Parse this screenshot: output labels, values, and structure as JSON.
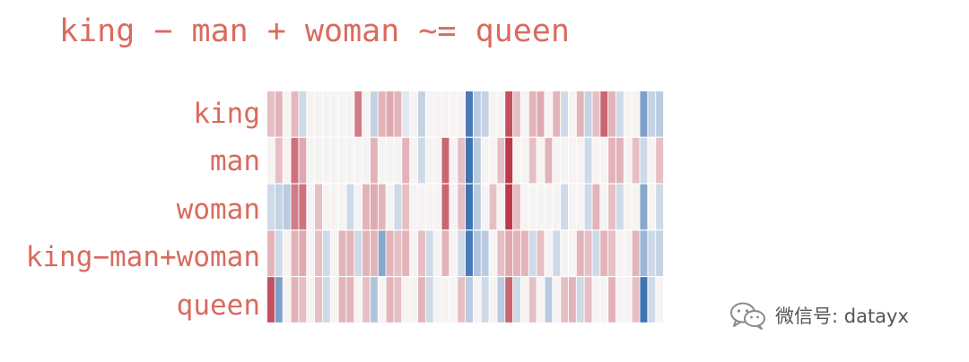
{
  "title": "king − man + woman ~= queen",
  "watermark": {
    "text": "微信号: datayx",
    "icon": "wechat-icon"
  },
  "chart_data": {
    "type": "heatmap",
    "title": "king − man + woman ~= queen",
    "rows": [
      "king",
      "man",
      "woman",
      "king−man+woman",
      "queen"
    ],
    "n_columns": 50,
    "value_range": [
      -1,
      1
    ],
    "colormap": {
      "negative": "#2b65a9",
      "zero": "#f7f7f7",
      "positive": "#b2182b"
    },
    "values": [
      [
        0.25,
        0.3,
        0.02,
        0.28,
        -0.2,
        0.02,
        0.02,
        0.02,
        0.02,
        0.02,
        0.02,
        0.55,
        0.02,
        -0.25,
        0.3,
        0.35,
        0.3,
        -0.1,
        0.02,
        -0.25,
        0.02,
        0.02,
        0.02,
        0.02,
        0.02,
        -0.85,
        -0.3,
        -0.25,
        0.02,
        0.02,
        0.75,
        0.25,
        0.02,
        0.3,
        0.35,
        0.02,
        0.3,
        -0.2,
        0.02,
        0.3,
        -0.25,
        0.25,
        0.65,
        0.3,
        -0.2,
        0.02,
        0.02,
        -0.6,
        -0.25,
        -0.3
      ],
      [
        0.02,
        0.25,
        0.02,
        0.6,
        0.35,
        0.02,
        0.02,
        0.02,
        0.02,
        0.02,
        0.02,
        0.02,
        0.02,
        0.3,
        0.02,
        0.02,
        0.02,
        0.3,
        0.02,
        -0.2,
        0.02,
        0.02,
        0.65,
        0.02,
        0.25,
        -0.9,
        -0.3,
        0.02,
        0.02,
        0.25,
        0.85,
        0.02,
        0.02,
        0.25,
        0.02,
        0.3,
        0.02,
        0.02,
        0.02,
        0.02,
        -0.2,
        0.02,
        0.02,
        0.3,
        0.3,
        0.02,
        0.25,
        -0.2,
        0.02,
        0.25
      ],
      [
        -0.2,
        -0.25,
        -0.3,
        0.55,
        0.6,
        0.02,
        0.25,
        0.02,
        0.02,
        0.02,
        -0.2,
        0.02,
        0.3,
        0.35,
        0.3,
        0.02,
        -0.2,
        0.25,
        0.02,
        0.02,
        0.02,
        0.02,
        0.65,
        0.02,
        0.25,
        -0.9,
        -0.3,
        0.02,
        0.25,
        0.02,
        0.85,
        0.25,
        0.02,
        0.02,
        0.02,
        0.02,
        0.02,
        -0.2,
        0.02,
        0.02,
        -0.2,
        0.3,
        0.02,
        0.25,
        -0.2,
        0.02,
        0.02,
        -0.55,
        0.02,
        -0.2
      ],
      [
        0.3,
        -0.2,
        0.02,
        0.3,
        0.35,
        0.02,
        0.25,
        -0.2,
        0.02,
        0.3,
        0.3,
        -0.2,
        0.3,
        0.3,
        -0.55,
        0.3,
        0.25,
        0.3,
        0.02,
        0.25,
        -0.2,
        0.02,
        0.3,
        0.02,
        -0.2,
        -0.85,
        -0.35,
        -0.3,
        0.02,
        0.25,
        0.35,
        0.3,
        0.3,
        -0.2,
        0.25,
        0.02,
        -0.2,
        0.02,
        0.02,
        0.3,
        0.25,
        -0.2,
        0.3,
        0.25,
        0.02,
        0.02,
        0.3,
        -0.45,
        -0.2,
        -0.25
      ],
      [
        0.75,
        -0.6,
        0.02,
        0.3,
        0.25,
        0.02,
        0.25,
        -0.2,
        0.02,
        0.3,
        0.3,
        0.02,
        0.25,
        -0.35,
        0.02,
        0.3,
        0.25,
        0.02,
        0.02,
        0.3,
        -0.2,
        0.02,
        0.02,
        0.02,
        0.25,
        -0.3,
        0.02,
        -0.2,
        0.02,
        -0.3,
        0.65,
        -0.2,
        0.02,
        0.25,
        0.02,
        -0.3,
        0.02,
        0.25,
        0.3,
        -0.2,
        0.25,
        0.02,
        0.02,
        0.3,
        0.02,
        0.02,
        0.25,
        -0.9,
        -0.2,
        0.02
      ]
    ]
  }
}
